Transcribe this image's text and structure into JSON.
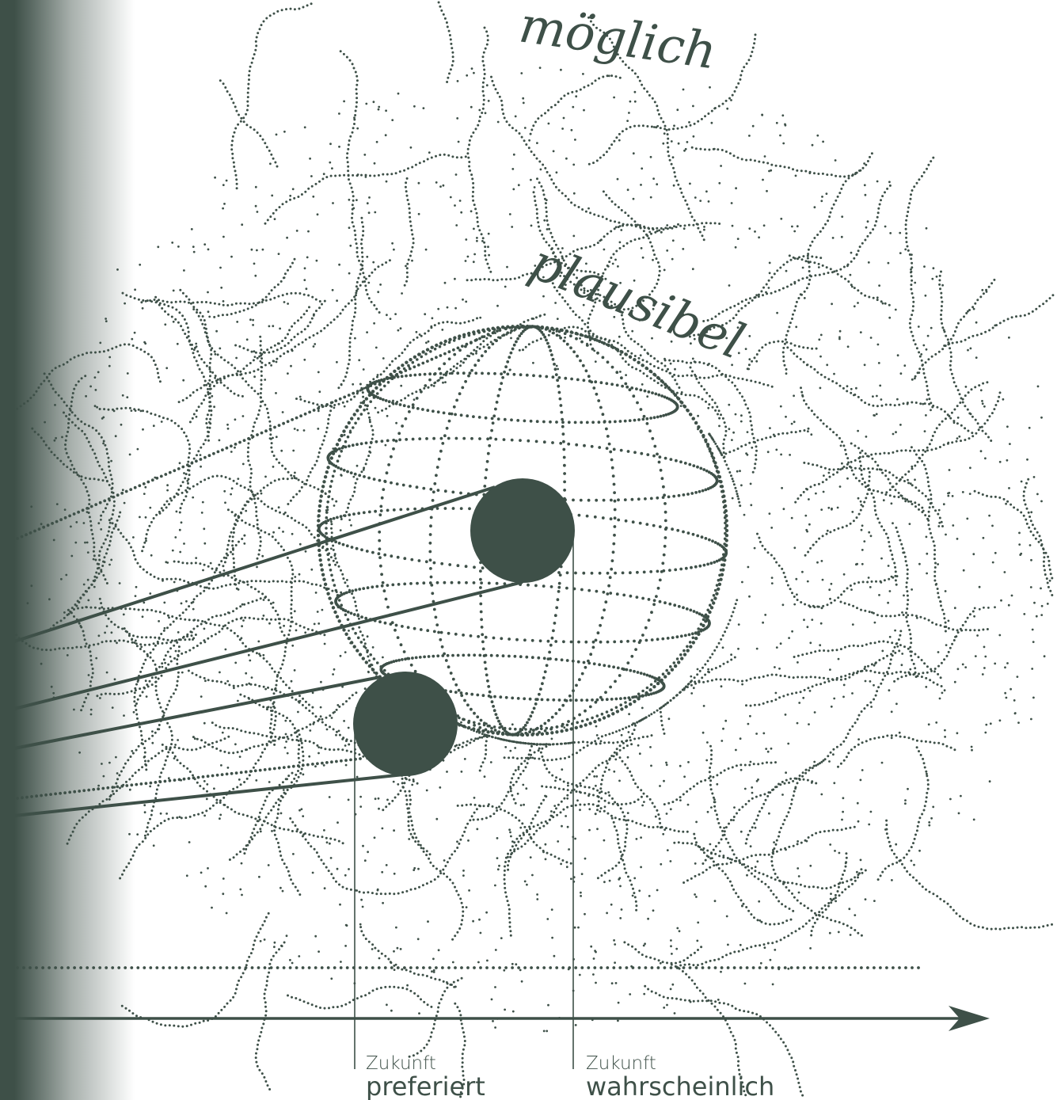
{
  "labels": {
    "possible": "möglich",
    "plausible": "plausibel",
    "future_preferred_small": "Zukunft",
    "future_preferred_big": "preferiert",
    "future_probable_small": "Zukunft",
    "future_probable_big": "wahrscheinlich"
  },
  "colors": {
    "ink": "#3e5048",
    "background": "#ffffff"
  }
}
